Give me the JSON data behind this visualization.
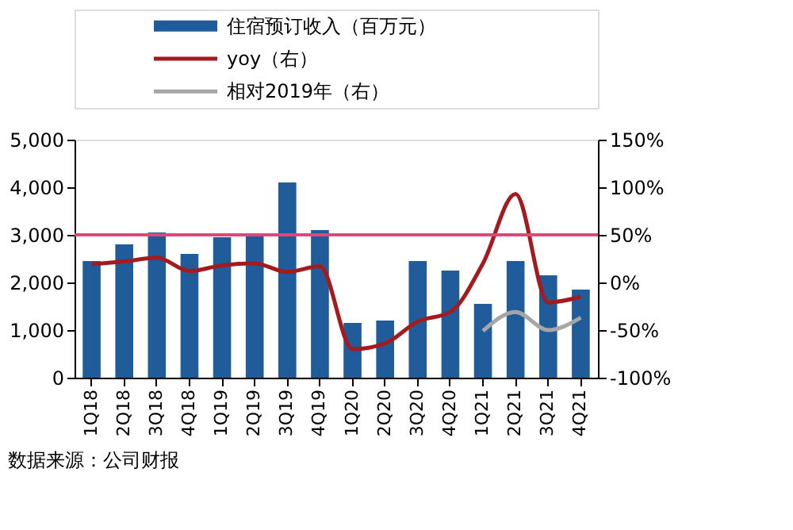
{
  "chart_data": {
    "type": "bar",
    "categories": [
      "1Q18",
      "2Q18",
      "3Q18",
      "4Q18",
      "1Q19",
      "2Q19",
      "3Q19",
      "4Q19",
      "1Q20",
      "2Q20",
      "3Q20",
      "4Q20",
      "1Q21",
      "2Q21",
      "3Q21",
      "4Q21"
    ],
    "series": [
      {
        "name": "住宿预订收入（百万元）",
        "color": "#1f5c99",
        "values": [
          2450,
          2800,
          3050,
          2600,
          2950,
          3000,
          4100,
          3100,
          1150,
          1200,
          2450,
          2250,
          1550,
          2450,
          2150,
          1850
        ]
      },
      {
        "name": "yoy（右）",
        "type": "line",
        "axis": "y2",
        "color": "#a31b1f",
        "values": [
          19,
          22,
          26,
          12,
          18,
          20,
          11,
          17,
          -70,
          -64,
          -41,
          -31,
          20,
          93,
          -21,
          -15
        ]
      },
      {
        "name": "相对2019年（右）",
        "type": "line",
        "axis": "y2",
        "color": "#a6a6a6",
        "values": [
          null,
          null,
          null,
          null,
          null,
          null,
          null,
          null,
          null,
          null,
          null,
          null,
          -51,
          -31,
          -50,
          -37
        ]
      }
    ],
    "ylim": [
      0,
      5000
    ],
    "yticks": [
      {
        "value": 0,
        "label": "0"
      },
      {
        "value": 1000,
        "label": "1,000"
      },
      {
        "value": 2000,
        "label": "2,000"
      },
      {
        "value": 3000,
        "label": "3,000"
      },
      {
        "value": 4000,
        "label": "4,000"
      },
      {
        "value": 5000,
        "label": "5,000"
      }
    ],
    "y2lim": [
      -100,
      150
    ],
    "y2ticks": [
      {
        "value": -100,
        "label": "-100%"
      },
      {
        "value": -50,
        "label": "-50%"
      },
      {
        "value": 0,
        "label": "0%"
      },
      {
        "value": 50,
        "label": "50%"
      },
      {
        "value": 100,
        "label": "100%"
      },
      {
        "value": 150,
        "label": "150%"
      }
    ],
    "ref_lines": [
      {
        "axis": "y2",
        "value": 50,
        "color": "#e0457b"
      }
    ],
    "legend": "top",
    "annotations": [
      "数据来源：公司财报"
    ]
  }
}
